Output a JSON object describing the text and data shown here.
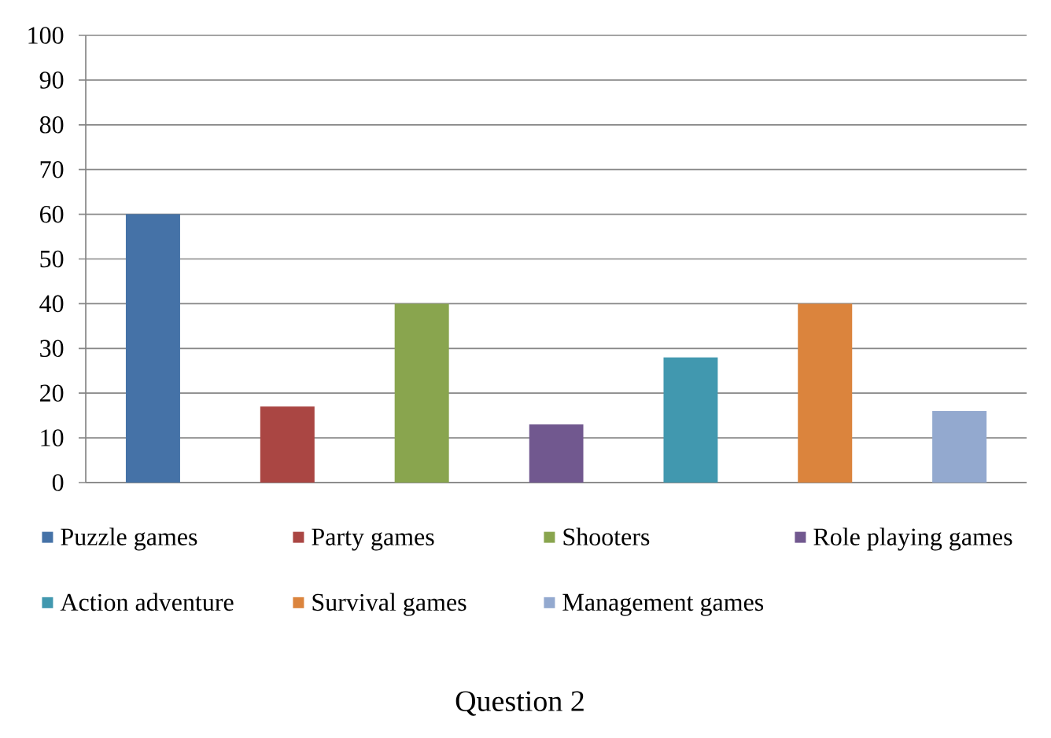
{
  "chart_data": {
    "type": "bar",
    "title": "Question 2",
    "categories": [
      null
    ],
    "series": [
      {
        "name": "Puzzle games",
        "color": "#4572A7",
        "values": [
          60
        ]
      },
      {
        "name": "Party games",
        "color": "#AA4643",
        "values": [
          17
        ]
      },
      {
        "name": "Shooters",
        "color": "#89A54E",
        "values": [
          40
        ]
      },
      {
        "name": "Role playing games",
        "color": "#71588F",
        "values": [
          13
        ]
      },
      {
        "name": "Action adventure",
        "color": "#4198AF",
        "values": [
          28
        ]
      },
      {
        "name": "Survival games",
        "color": "#DB843D",
        "values": [
          40
        ]
      },
      {
        "name": "Management games",
        "color": "#93A9CF",
        "values": [
          16
        ]
      }
    ],
    "ylim": [
      0,
      100
    ],
    "yticks": [
      0,
      10,
      20,
      30,
      40,
      50,
      60,
      70,
      80,
      90,
      100
    ],
    "grid": "y",
    "legend": "bottom"
  }
}
